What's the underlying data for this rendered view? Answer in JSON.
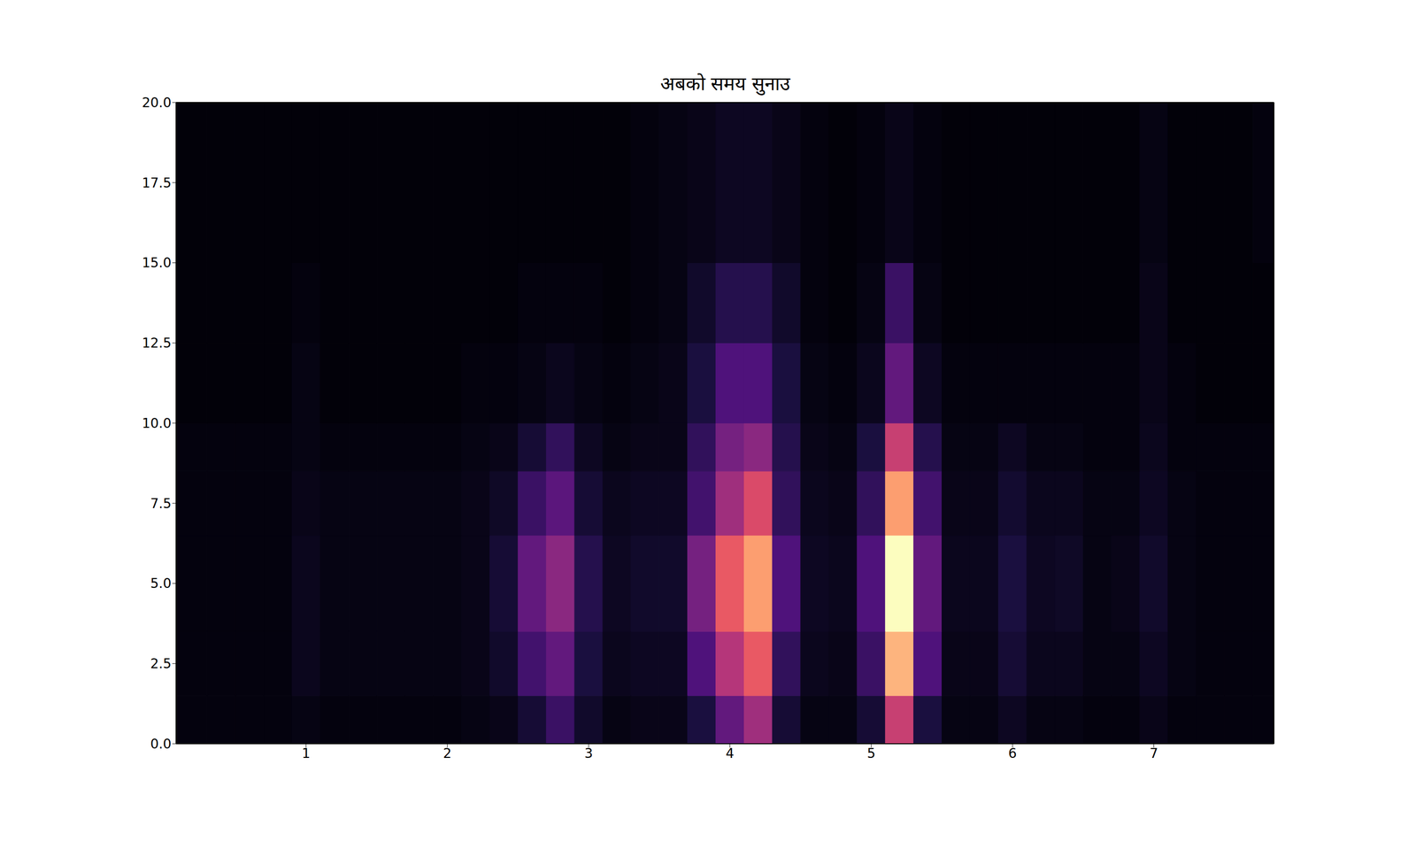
{
  "chart_data": {
    "type": "heatmap",
    "title": "अबको समय सुनाउ",
    "xlim": [
      0.08,
      7.85
    ],
    "ylim": [
      0,
      20
    ],
    "xticks": [
      1,
      2,
      3,
      4,
      5,
      6,
      7
    ],
    "yticks": [
      {
        "value": 0,
        "label": "0.0"
      },
      2.5,
      {
        "value": 5,
        "label": "5.0"
      },
      7.5,
      {
        "value": 10,
        "label": "10.0"
      },
      12.5,
      {
        "value": 15,
        "label": "15.0"
      },
      17.5,
      {
        "value": 20,
        "label": "20.0"
      }
    ],
    "zlim": [
      0,
      1
    ],
    "x_edges": [
      0.08,
      0.3,
      0.5,
      0.7,
      0.9,
      1.1,
      1.3,
      1.5,
      1.7,
      1.9,
      2.1,
      2.3,
      2.5,
      2.7,
      2.9,
      3.1,
      3.3,
      3.5,
      3.7,
      3.9,
      4.1,
      4.3,
      4.5,
      4.7,
      4.9,
      5.1,
      5.3,
      5.5,
      5.7,
      5.9,
      6.1,
      6.3,
      6.5,
      6.7,
      6.9,
      7.1,
      7.3,
      7.5,
      7.7,
      7.85
    ],
    "y_edges": [
      0,
      1.5,
      3.5,
      6.5,
      8.5,
      10,
      12.5,
      15,
      20
    ],
    "cells": [
      [
        0.02,
        0.02,
        0.02,
        0.02,
        0.03,
        0.02,
        0.02,
        0.02,
        0.02,
        0.02,
        0.03,
        0.04,
        0.1,
        0.2,
        0.08,
        0.03,
        0.04,
        0.04,
        0.12,
        0.3,
        0.45,
        0.1,
        0.03,
        0.03,
        0.1,
        0.55,
        0.12,
        0.03,
        0.03,
        0.06,
        0.03,
        0.03,
        0.02,
        0.02,
        0.04,
        0.02,
        0.02,
        0.02,
        0.02
      ],
      [
        0.02,
        0.02,
        0.02,
        0.02,
        0.05,
        0.03,
        0.03,
        0.03,
        0.03,
        0.03,
        0.04,
        0.08,
        0.22,
        0.3,
        0.12,
        0.05,
        0.06,
        0.06,
        0.25,
        0.5,
        0.65,
        0.18,
        0.05,
        0.04,
        0.2,
        0.85,
        0.25,
        0.04,
        0.04,
        0.1,
        0.05,
        0.05,
        0.03,
        0.03,
        0.06,
        0.03,
        0.02,
        0.02,
        0.02
      ],
      [
        0.02,
        0.02,
        0.02,
        0.02,
        0.05,
        0.03,
        0.03,
        0.03,
        0.03,
        0.03,
        0.04,
        0.1,
        0.3,
        0.4,
        0.15,
        0.06,
        0.08,
        0.08,
        0.35,
        0.65,
        0.8,
        0.25,
        0.06,
        0.05,
        0.25,
        1.0,
        0.3,
        0.05,
        0.05,
        0.12,
        0.06,
        0.07,
        0.03,
        0.04,
        0.08,
        0.03,
        0.02,
        0.02,
        0.02
      ],
      [
        0.02,
        0.02,
        0.02,
        0.02,
        0.04,
        0.03,
        0.03,
        0.03,
        0.03,
        0.03,
        0.04,
        0.07,
        0.2,
        0.28,
        0.1,
        0.05,
        0.06,
        0.06,
        0.22,
        0.45,
        0.6,
        0.18,
        0.05,
        0.04,
        0.18,
        0.8,
        0.22,
        0.04,
        0.04,
        0.09,
        0.05,
        0.05,
        0.03,
        0.03,
        0.06,
        0.03,
        0.02,
        0.02,
        0.02
      ],
      [
        0.02,
        0.02,
        0.02,
        0.02,
        0.03,
        0.02,
        0.02,
        0.02,
        0.02,
        0.02,
        0.03,
        0.04,
        0.1,
        0.18,
        0.06,
        0.03,
        0.04,
        0.04,
        0.18,
        0.35,
        0.4,
        0.15,
        0.04,
        0.03,
        0.12,
        0.55,
        0.15,
        0.03,
        0.03,
        0.06,
        0.03,
        0.03,
        0.02,
        0.02,
        0.05,
        0.02,
        0.02,
        0.02,
        0.02
      ],
      [
        0.01,
        0.01,
        0.01,
        0.01,
        0.03,
        0.01,
        0.01,
        0.01,
        0.01,
        0.01,
        0.02,
        0.02,
        0.03,
        0.05,
        0.03,
        0.02,
        0.03,
        0.04,
        0.12,
        0.25,
        0.25,
        0.12,
        0.03,
        0.02,
        0.05,
        0.3,
        0.06,
        0.02,
        0.02,
        0.02,
        0.02,
        0.02,
        0.02,
        0.02,
        0.04,
        0.02,
        0.01,
        0.01,
        0.01
      ],
      [
        0.01,
        0.01,
        0.01,
        0.01,
        0.02,
        0.01,
        0.01,
        0.01,
        0.01,
        0.01,
        0.01,
        0.01,
        0.02,
        0.02,
        0.02,
        0.01,
        0.02,
        0.03,
        0.08,
        0.15,
        0.15,
        0.08,
        0.02,
        0.01,
        0.03,
        0.2,
        0.03,
        0.01,
        0.01,
        0.01,
        0.01,
        0.01,
        0.01,
        0.01,
        0.04,
        0.01,
        0.01,
        0.01,
        0.01
      ],
      [
        0.01,
        0.01,
        0.01,
        0.01,
        0.01,
        0.01,
        0.01,
        0.01,
        0.01,
        0.01,
        0.01,
        0.01,
        0.01,
        0.01,
        0.01,
        0.01,
        0.02,
        0.03,
        0.04,
        0.06,
        0.06,
        0.04,
        0.02,
        0.01,
        0.02,
        0.04,
        0.02,
        0.01,
        0.01,
        0.01,
        0.01,
        0.01,
        0.01,
        0.01,
        0.03,
        0.01,
        0.01,
        0.01,
        0.02
      ]
    ]
  }
}
